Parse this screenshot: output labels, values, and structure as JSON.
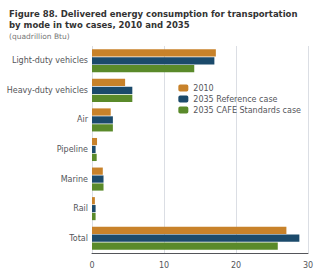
{
  "chart_data": {
    "type": "bar",
    "orientation": "horizontal",
    "title": "Figure 88. Delivered energy consumption for transportation\nby mode in two cases, 2010 and 2035",
    "subtitle": "(quadrillion Btu)",
    "categories": [
      "Light-duty vehicles",
      "Heavy-duty vehicles",
      "Air",
      "Pipeline",
      "Marine",
      "Rail",
      "Total"
    ],
    "series": [
      {
        "name": "2010",
        "color": "#c8822a",
        "values": [
          17.2,
          4.6,
          2.6,
          0.7,
          1.5,
          0.4,
          27.0
        ]
      },
      {
        "name": "2035 Reference case",
        "color": "#1b4a6b",
        "values": [
          17.0,
          5.6,
          2.9,
          0.5,
          1.6,
          0.5,
          28.8
        ]
      },
      {
        "name": "2035 CAFE Standards case",
        "color": "#5a8a2a",
        "values": [
          14.2,
          5.6,
          2.9,
          0.65,
          1.6,
          0.5,
          25.8
        ]
      }
    ],
    "xlim": [
      0,
      30
    ],
    "xticks": [
      0,
      10,
      20,
      30
    ],
    "grid": true,
    "legend": "upper right"
  }
}
